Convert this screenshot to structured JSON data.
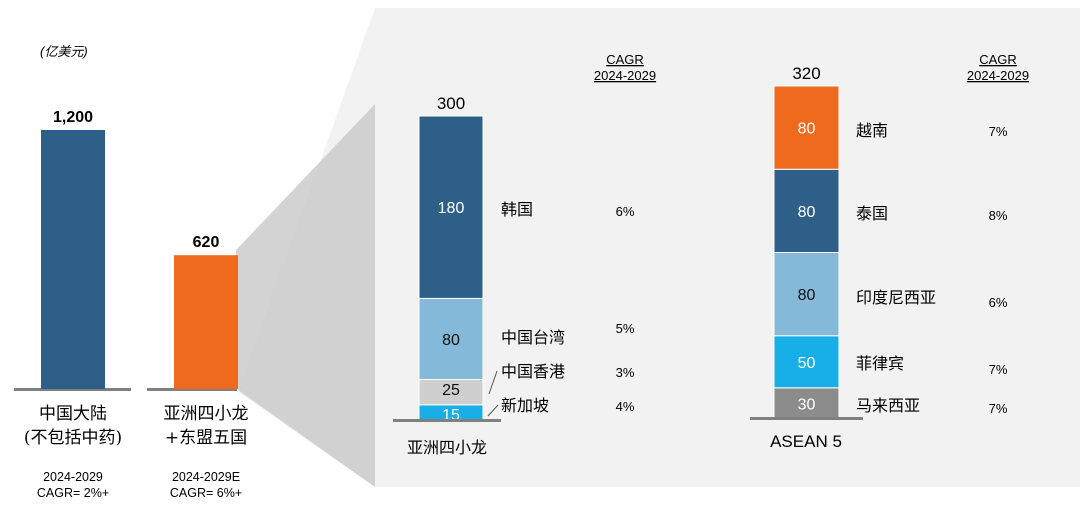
{
  "colors": {
    "dark_blue": "#2e5f88",
    "orange": "#f06a1e",
    "light_blue": "#85b9da",
    "cyan": "#18aee8",
    "light_gray": "#cfcfcf",
    "dark_gray": "#8c8c8c",
    "base_line": "#808080",
    "panel": "#f2f2f2",
    "cone": "#c8c8c8"
  },
  "unit_label": "(亿美元)",
  "chart_data": [
    {
      "type": "bar",
      "categories": [
        "中国大陆 (不包括中药)",
        "亚洲四小龙 +东盟五国"
      ],
      "values": [
        1200,
        620
      ],
      "value_labels": [
        "1,200",
        "620"
      ],
      "category_lines": [
        [
          "中国大陆",
          "(不包括中药)"
        ],
        [
          "亚洲四小龙",
          "+东盟五国"
        ]
      ],
      "notes": [
        [
          "2024-2029",
          "CAGR= 2%+"
        ],
        [
          "2024-2029E",
          "CAGR= 6%+"
        ]
      ],
      "bar_colors": [
        "#2e5f88",
        "#f06a1e"
      ]
    },
    {
      "type": "bar",
      "stacked": true,
      "category": "亚洲四小龙",
      "total_label": "300",
      "cagr_header": [
        "CAGR",
        "2024-2029"
      ],
      "segments": [
        {
          "name": "新加坡",
          "value": 15,
          "label": "15",
          "cagr": "4%",
          "color": "#18aee8",
          "text_color": "#ffffff"
        },
        {
          "name": "中国香港",
          "value": 25,
          "label": "25",
          "cagr": "3%",
          "color": "#cfcfcf",
          "text_color": "#111111"
        },
        {
          "name": "中国台湾",
          "value": 80,
          "label": "80",
          "cagr": "5%",
          "color": "#85b9da",
          "text_color": "#111111"
        },
        {
          "name": "韩国",
          "value": 180,
          "label": "180",
          "cagr": "6%",
          "color": "#2e5f88",
          "text_color": "#ffffff"
        }
      ]
    },
    {
      "type": "bar",
      "stacked": true,
      "category": "ASEAN 5",
      "total_label": "320",
      "cagr_header": [
        "CAGR",
        "2024-2029"
      ],
      "segments": [
        {
          "name": "马来西亚",
          "value": 30,
          "label": "30",
          "cagr": "7%",
          "color": "#8c8c8c",
          "text_color": "#ffffff"
        },
        {
          "name": "菲律宾",
          "value": 50,
          "label": "50",
          "cagr": "7%",
          "color": "#18aee8",
          "text_color": "#ffffff"
        },
        {
          "name": "印度尼西亚",
          "value": 80,
          "label": "80",
          "cagr": "6%",
          "color": "#85b9da",
          "text_color": "#111111"
        },
        {
          "name": "泰国",
          "value": 80,
          "label": "80",
          "cagr": "8%",
          "color": "#2e5f88",
          "text_color": "#ffffff"
        },
        {
          "name": "越南",
          "value": 80,
          "label": "80",
          "cagr": "7%",
          "color": "#f06a1e",
          "text_color": "#ffffff"
        }
      ]
    }
  ]
}
